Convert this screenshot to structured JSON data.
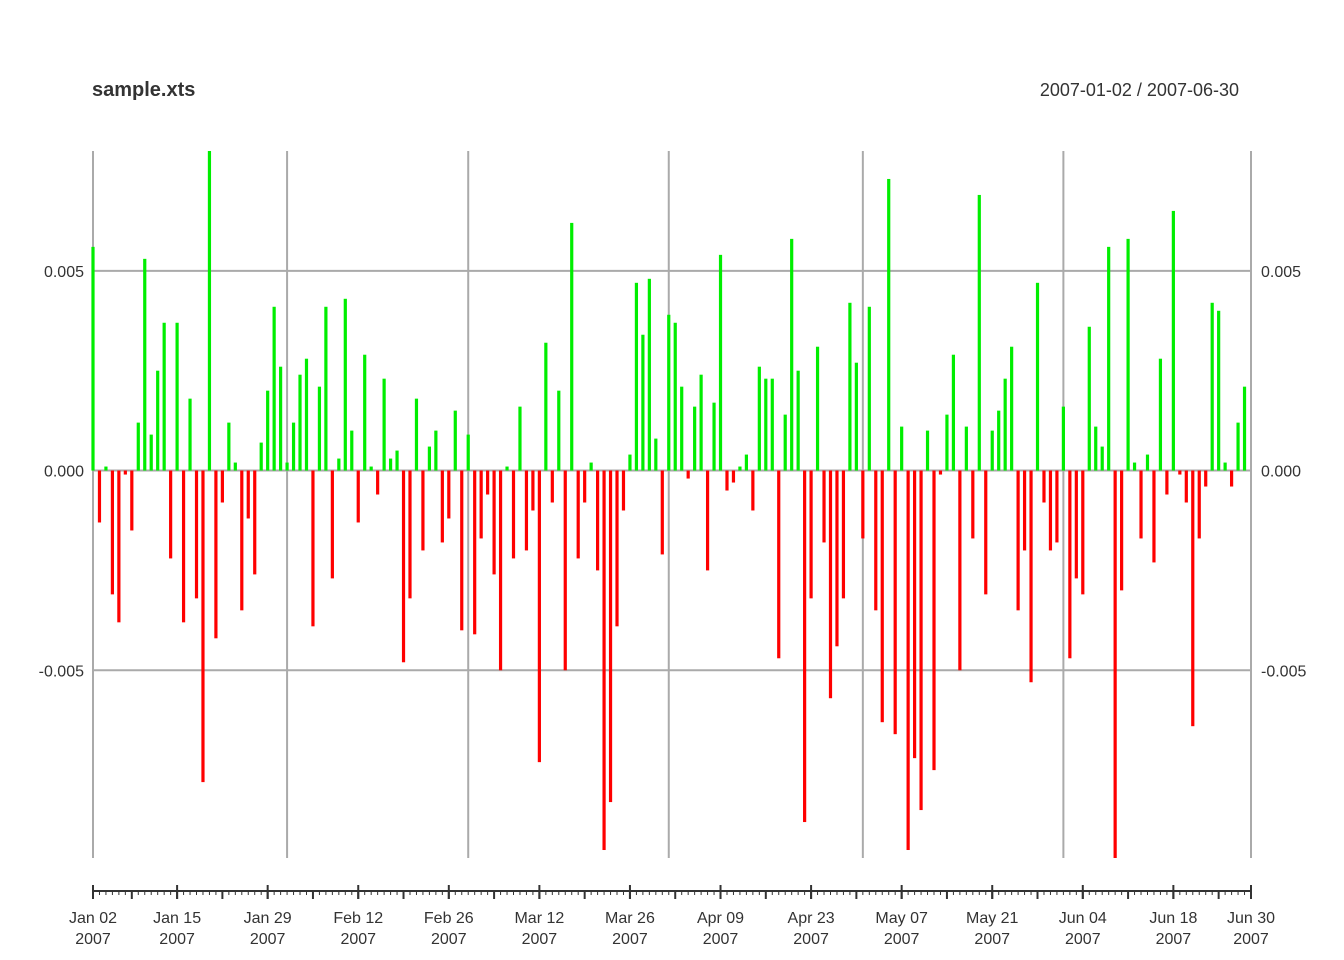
{
  "chart_data": {
    "type": "bar",
    "title": "sample.xts",
    "subtitle": "2007-01-02 / 2007-06-30",
    "ylim": [
      -0.0097,
      0.008
    ],
    "yticks": [
      0.005,
      0.0,
      -0.005
    ],
    "ytick_labels": [
      "0.005",
      "0.000",
      "-0.005"
    ],
    "x_range": [
      "2007-01-02",
      "2007-06-30"
    ],
    "vgrid_dates": [
      "2007-01-02",
      "2007-02-01",
      "2007-03-01",
      "2007-04-01",
      "2007-05-01",
      "2007-06-01",
      "2007-06-30"
    ],
    "minor_tick_dates": [
      "2007-01-02",
      "2007-01-08",
      "2007-01-15",
      "2007-01-22",
      "2007-01-29",
      "2007-02-05",
      "2007-02-12",
      "2007-02-19",
      "2007-02-26",
      "2007-03-05",
      "2007-03-12",
      "2007-03-19",
      "2007-03-26",
      "2007-04-02",
      "2007-04-09",
      "2007-04-16",
      "2007-04-23",
      "2007-04-30",
      "2007-05-07",
      "2007-05-14",
      "2007-05-21",
      "2007-05-28",
      "2007-06-04",
      "2007-06-11",
      "2007-06-18",
      "2007-06-25",
      "2007-06-30"
    ],
    "xtick_labels": [
      {
        "date": "2007-01-02",
        "label": "Jan 02",
        "year": "2007"
      },
      {
        "date": "2007-01-15",
        "label": "Jan 15",
        "year": "2007"
      },
      {
        "date": "2007-01-29",
        "label": "Jan 29",
        "year": "2007"
      },
      {
        "date": "2007-02-12",
        "label": "Feb 12",
        "year": "2007"
      },
      {
        "date": "2007-02-26",
        "label": "Feb 26",
        "year": "2007"
      },
      {
        "date": "2007-03-12",
        "label": "Mar 12",
        "year": "2007"
      },
      {
        "date": "2007-03-26",
        "label": "Mar 26",
        "year": "2007"
      },
      {
        "date": "2007-04-09",
        "label": "Apr 09",
        "year": "2007"
      },
      {
        "date": "2007-04-23",
        "label": "Apr 23",
        "year": "2007"
      },
      {
        "date": "2007-05-07",
        "label": "May 07",
        "year": "2007"
      },
      {
        "date": "2007-05-21",
        "label": "May 21",
        "year": "2007"
      },
      {
        "date": "2007-06-04",
        "label": "Jun 04",
        "year": "2007"
      },
      {
        "date": "2007-06-18",
        "label": "Jun 18",
        "year": "2007"
      },
      {
        "date": "2007-06-30",
        "label": "Jun 30",
        "year": "2007"
      }
    ],
    "start_date": "2007-01-02",
    "values": [
      0.0056,
      -0.0013,
      0.0001,
      -0.0031,
      -0.0038,
      -0.0001,
      -0.0015,
      0.0012,
      0.0053,
      0.0009,
      0.0025,
      0.0037,
      -0.0022,
      0.0037,
      -0.0038,
      0.0018,
      -0.0032,
      -0.0078,
      0.008,
      -0.0042,
      -0.0008,
      0.0012,
      0.0002,
      -0.0035,
      -0.0012,
      -0.0026,
      0.0007,
      0.002,
      0.0041,
      0.0026,
      0.0002,
      0.0012,
      0.0024,
      0.0028,
      -0.0039,
      0.0021,
      0.0041,
      -0.0027,
      0.0003,
      0.0043,
      0.001,
      -0.0013,
      0.0029,
      0.0001,
      -0.0006,
      0.0023,
      0.0003,
      0.0005,
      -0.0048,
      -0.0032,
      0.0018,
      -0.002,
      0.0006,
      0.001,
      -0.0018,
      -0.0012,
      0.0015,
      -0.004,
      0.0009,
      -0.0041,
      -0.0017,
      -0.0006,
      -0.0026,
      -0.005,
      0.0001,
      -0.0022,
      0.0016,
      -0.002,
      -0.001,
      -0.0073,
      0.0032,
      -0.0008,
      0.002,
      -0.005,
      0.0062,
      -0.0022,
      -0.0008,
      0.0002,
      -0.0025,
      -0.0095,
      -0.0083,
      -0.0039,
      -0.001,
      0.0004,
      0.0047,
      0.0034,
      0.0048,
      0.0008,
      -0.0021,
      0.0039,
      0.0037,
      0.0021,
      -0.0002,
      0.0016,
      0.0024,
      -0.0025,
      0.0017,
      0.0054,
      -0.0005,
      -0.0003,
      0.0001,
      0.0004,
      -0.001,
      0.0026,
      0.0023,
      0.0023,
      -0.0047,
      0.0014,
      0.0058,
      0.0025,
      -0.0088,
      -0.0032,
      0.0031,
      -0.0018,
      -0.0057,
      -0.0044,
      -0.0032,
      0.0042,
      0.0027,
      -0.0017,
      0.0041,
      -0.0035,
      -0.0063,
      0.0073,
      -0.0066,
      0.0011,
      -0.0095,
      -0.0072,
      -0.0085,
      0.001,
      -0.0075,
      -0.0001,
      0.0014,
      0.0029,
      -0.005,
      0.0011,
      -0.0017,
      0.0069,
      -0.0031,
      0.001,
      0.0015,
      0.0023,
      0.0031,
      -0.0035,
      -0.002,
      -0.0053,
      0.0047,
      -0.0008,
      -0.002,
      -0.0018,
      0.0016,
      -0.0047,
      -0.0027,
      -0.0031,
      0.0036,
      0.0011,
      0.0006,
      0.0056,
      -0.0097,
      -0.003,
      0.0058,
      0.0002,
      -0.0017,
      0.0004,
      -0.0023,
      0.0028,
      -0.0006,
      0.0065,
      -0.0001,
      -0.0008,
      -0.0064,
      -0.0017,
      -0.0004,
      0.0042,
      0.004,
      0.0002,
      -0.0004,
      0.0012,
      0.0021
    ],
    "colors": {
      "positive": "#00ee00",
      "negative": "#ff0000",
      "grid": "#aaaaaa",
      "axis": "#333333",
      "text": "#333333"
    },
    "grid": true,
    "legend": "none"
  }
}
